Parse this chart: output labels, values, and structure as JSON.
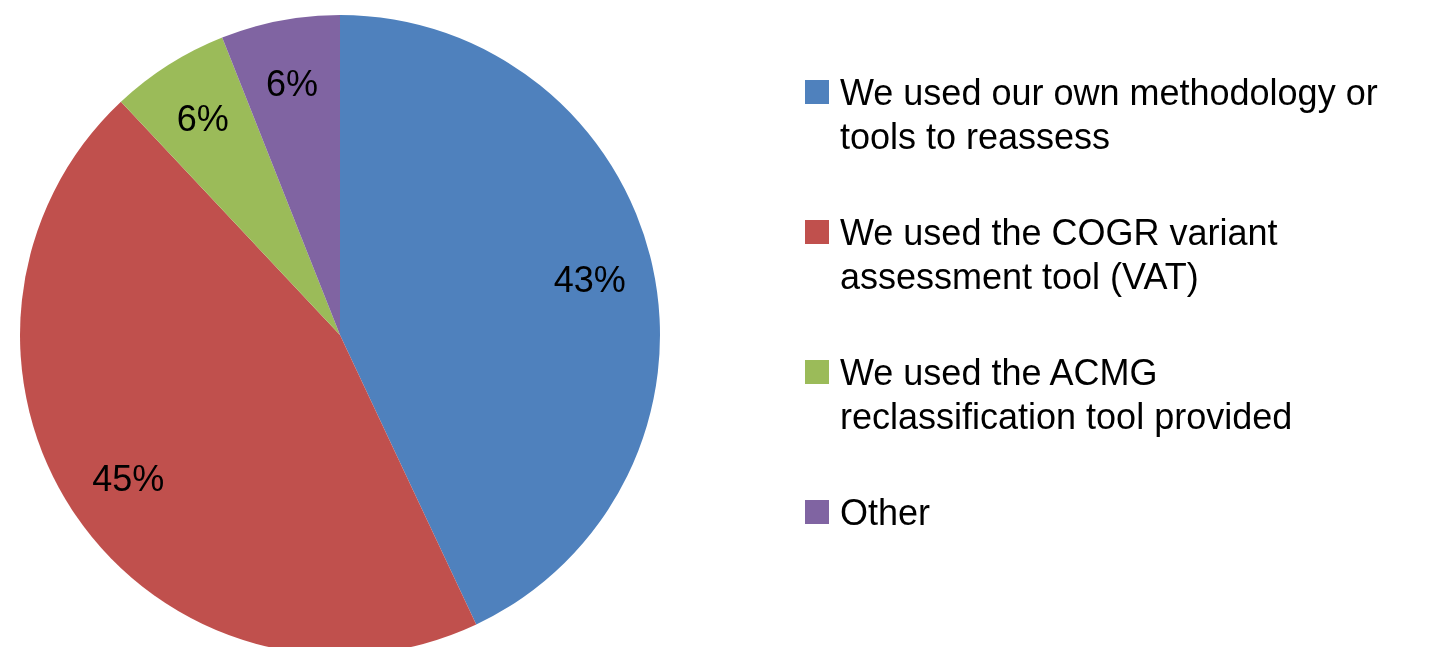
{
  "chart_data": {
    "type": "pie",
    "categories": [
      "We used our own methodology or tools to reassess",
      "We used the COGR variant assessment tool (VAT)",
      "We used the ACMG reclassification tool provided",
      "Other"
    ],
    "values": [
      43,
      45,
      6,
      6
    ],
    "colors": [
      "#4f81bd",
      "#c0504d",
      "#9bbb59",
      "#8064a2"
    ],
    "value_labels": [
      "43%",
      "45%",
      "6%",
      "6%"
    ],
    "legend": "right"
  }
}
